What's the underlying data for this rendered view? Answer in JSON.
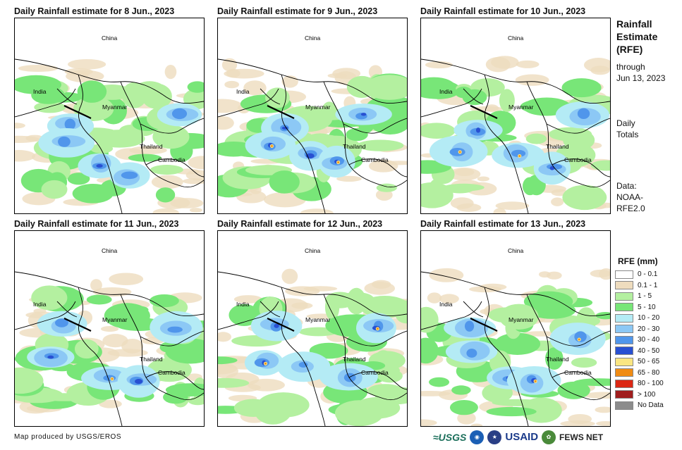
{
  "panels": [
    {
      "title": "Daily Rainfall estimate for 8 Jun., 2023",
      "labels": {
        "china": "China",
        "india": "India",
        "myanmar": "Myanmar",
        "thailand": "Thailand",
        "cambodia": "Cambodia"
      }
    },
    {
      "title": "Daily Rainfall estimate for 9 Jun., 2023",
      "labels": {
        "china": "China",
        "india": "India",
        "myanmar": "Myanmar",
        "thailand": "Thailand",
        "cambodia": "Cambodia"
      }
    },
    {
      "title": "Daily Rainfall estimate for 10 Jun., 2023",
      "labels": {
        "china": "China",
        "india": "India",
        "myanmar": "Myanmar",
        "thailand": "Thailand",
        "cambodia": "Cambodia"
      }
    },
    {
      "title": "Daily Rainfall estimate for 11 Jun., 2023",
      "labels": {
        "china": "China",
        "india": "India",
        "myanmar": "Myanmar",
        "thailand": "Thailand",
        "cambodia": "Cambodia"
      }
    },
    {
      "title": "Daily Rainfall estimate for 12 Jun., 2023",
      "labels": {
        "china": "China",
        "india": "India",
        "myanmar": "Myanmar",
        "thailand": "Thailand",
        "cambodia": "Cambodia"
      }
    },
    {
      "title": "Daily Rainfall estimate for 13 Jun., 2023",
      "labels": {
        "china": "China",
        "india": "India",
        "myanmar": "Myanmar",
        "thailand": "Thailand",
        "cambodia": "Cambodia"
      }
    }
  ],
  "sidebar": {
    "title_line1": "Rainfall",
    "title_line2": "Estimate",
    "title_line3": "(RFE)",
    "through": "through",
    "date": "Jun 13, 2023",
    "daily1": "Daily",
    "daily2": "Totals",
    "data1": "Data:",
    "data2": "NOAA-",
    "data3": "RFE2.0"
  },
  "legend": {
    "title": "RFE (mm)",
    "items": [
      {
        "label": "0 - 0.1",
        "color": "#ffffff"
      },
      {
        "label": "0.1 - 1",
        "color": "#eedcbe"
      },
      {
        "label": "1 - 5",
        "color": "#b4f0a0"
      },
      {
        "label": "5 - 10",
        "color": "#78e678"
      },
      {
        "label": "10 - 20",
        "color": "#b4ebf5"
      },
      {
        "label": "20 - 30",
        "color": "#8cc8f5"
      },
      {
        "label": "30 - 40",
        "color": "#5096eb"
      },
      {
        "label": "40 - 50",
        "color": "#2850d2"
      },
      {
        "label": "50 - 65",
        "color": "#fae682"
      },
      {
        "label": "65 - 80",
        "color": "#f08c14"
      },
      {
        "label": "80 - 100",
        "color": "#dc2814"
      },
      {
        "label": "> 100",
        "color": "#a01e1e"
      },
      {
        "label": "No Data",
        "color": "#8c8c8c"
      }
    ]
  },
  "footer": {
    "credit": "Map produced by USGS/EROS",
    "usgs": "≈USGS",
    "usaid": "USAID",
    "fews": "FEWS NET"
  }
}
